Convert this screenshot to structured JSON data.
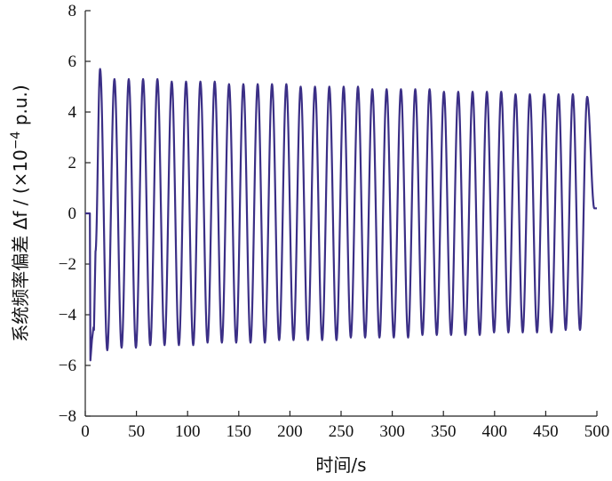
{
  "chart_data": {
    "type": "line",
    "title": "",
    "xlabel": "时间/s",
    "ylabel_main": "系统频率偏差 Δf / (×10",
    "ylabel_exp": "−4",
    "ylabel_tail": " p.u.)",
    "xlim": [
      0,
      500
    ],
    "ylim": [
      -8,
      8
    ],
    "xticks": [
      0,
      50,
      100,
      150,
      200,
      250,
      300,
      350,
      400,
      450,
      500
    ],
    "yticks": [
      -8,
      -6,
      -4,
      -2,
      0,
      2,
      4,
      6,
      8
    ],
    "xtick_labels": [
      "0",
      "50",
      "100",
      "150",
      "200",
      "250",
      "300",
      "350",
      "400",
      "450",
      "500"
    ],
    "ytick_labels": [
      "−8",
      "−6",
      "−4",
      "−2",
      "0",
      "2",
      "4",
      "6",
      "8"
    ],
    "grid": false,
    "series": [
      {
        "color": "#3b2f86",
        "x": [
          0,
          4.5,
          5.0,
          6.5,
          8.0,
          8.5,
          10.0,
          14.5,
          21.5,
          28.5,
          35.5,
          42.5,
          49.5,
          56.5,
          63.5,
          70.5,
          77.5,
          84.5,
          91.5,
          98.5,
          105.5,
          112.5,
          119.5,
          126.5,
          133.5,
          140.5,
          147.5,
          154.5,
          161.5,
          168.5,
          175.5,
          182.5,
          189.5,
          196.5,
          203.5,
          210.5,
          217.5,
          224.5,
          231.5,
          238.5,
          245.5,
          252.5,
          259.5,
          266.5,
          273.5,
          280.5,
          287.5,
          294.5,
          301.5,
          308.5,
          315.5,
          322.5,
          329.5,
          336.5,
          343.5,
          350.5,
          357.5,
          364.5,
          371.5,
          378.5,
          385.5,
          392.5,
          399.5,
          406.5,
          413.5,
          420.5,
          427.5,
          434.5,
          441.5,
          448.5,
          455.5,
          462.5,
          469.5,
          476.5,
          483.5,
          490.5,
          497.5,
          500
        ],
        "y": [
          0,
          0,
          -5.8,
          -5.0,
          -4.5,
          -4.6,
          -1.5,
          5.7,
          -5.4,
          5.3,
          -5.3,
          5.3,
          -5.3,
          5.3,
          -5.2,
          5.3,
          -5.2,
          5.2,
          -5.2,
          5.2,
          -5.2,
          5.2,
          -5.1,
          5.2,
          -5.1,
          5.1,
          -5.1,
          5.1,
          -5.1,
          5.1,
          -5.1,
          5.1,
          -5.0,
          5.1,
          -5.0,
          5.0,
          -5.0,
          5.0,
          -5.0,
          5.0,
          -5.0,
          5.0,
          -4.9,
          5.0,
          -4.9,
          4.9,
          -4.9,
          4.9,
          -4.9,
          4.9,
          -4.9,
          4.9,
          -4.8,
          4.9,
          -4.8,
          4.8,
          -4.8,
          4.8,
          -4.8,
          4.8,
          -4.8,
          4.8,
          -4.7,
          4.8,
          -4.7,
          4.7,
          -4.7,
          4.7,
          -4.7,
          4.7,
          -4.7,
          4.7,
          -4.6,
          4.7,
          -4.6,
          4.6,
          0.2,
          0.2
        ]
      }
    ]
  }
}
